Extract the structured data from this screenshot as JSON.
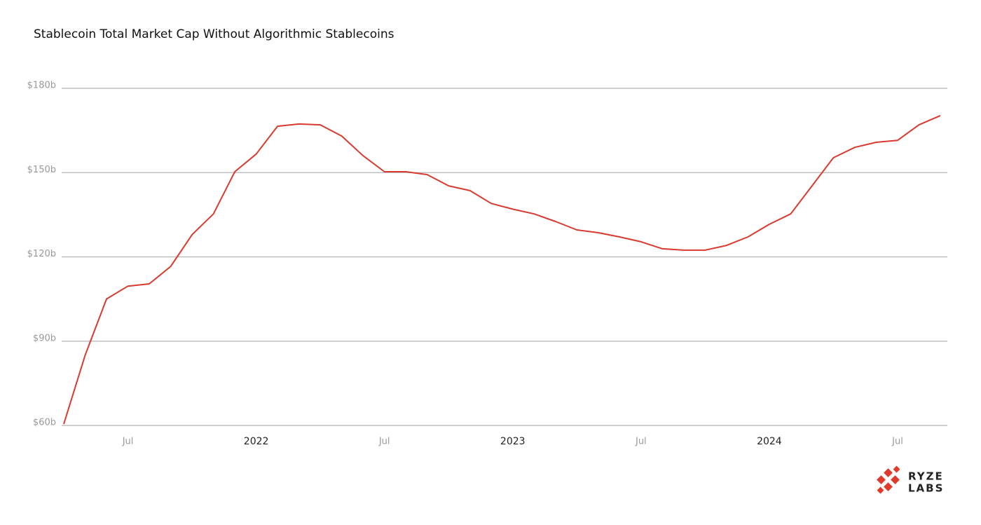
{
  "chart_data": {
    "type": "line",
    "title": "Stablecoin Total Market Cap Without Algorithmic Stablecoins",
    "x": [
      "2021-04",
      "2021-05",
      "2021-06",
      "2021-07",
      "2021-08",
      "2021-09",
      "2021-10",
      "2021-11",
      "2021-12",
      "2022-01",
      "2022-02",
      "2022-03",
      "2022-04",
      "2022-05",
      "2022-06",
      "2022-07",
      "2022-08",
      "2022-09",
      "2022-10",
      "2022-11",
      "2022-12",
      "2023-01",
      "2023-02",
      "2023-03",
      "2023-04",
      "2023-05",
      "2023-06",
      "2023-07",
      "2023-08",
      "2023-09",
      "2023-10",
      "2023-11",
      "2023-12",
      "2024-01",
      "2024-02",
      "2024-03",
      "2024-04",
      "2024-05",
      "2024-06",
      "2024-07",
      "2024-08",
      "2024-09"
    ],
    "series": [
      {
        "name": "Stablecoin Total Market Cap",
        "color": "#d93a2f",
        "values": [
          60.5,
          85,
          105,
          109.6,
          110.4,
          116.6,
          127.9,
          135.3,
          150.3,
          156.6,
          166.5,
          167.3,
          167,
          163,
          156,
          150.3,
          150.3,
          149.3,
          145.3,
          143.6,
          139,
          137,
          135.3,
          132.6,
          129.6,
          128.6,
          127.1,
          125.4,
          122.9,
          122.4,
          122.4,
          124.1,
          127.1,
          131.6,
          135.3,
          145.3,
          155.3,
          159,
          160.8,
          161.5,
          167,
          170.3
        ]
      }
    ],
    "xlim": [
      "2021-04",
      "2024-09"
    ],
    "xticks": [
      {
        "value": "2021-07",
        "label": "Jul"
      },
      {
        "value": "2022-01",
        "label": "2022"
      },
      {
        "value": "2022-07",
        "label": "Jul"
      },
      {
        "value": "2023-01",
        "label": "2023"
      },
      {
        "value": "2023-07",
        "label": "Jul"
      },
      {
        "value": "2024-01",
        "label": "2024"
      },
      {
        "value": "2024-07",
        "label": "Jul"
      }
    ],
    "ylim": [
      60,
      180
    ],
    "yticks": [
      {
        "value": 60,
        "label": "$60b"
      },
      {
        "value": 90,
        "label": "$90b"
      },
      {
        "value": 120,
        "label": "$120b"
      },
      {
        "value": 150,
        "label": "$150b"
      },
      {
        "value": 180,
        "label": "$180b"
      }
    ],
    "grid": true
  },
  "brand": [
    "RYZE",
    "LABS"
  ]
}
